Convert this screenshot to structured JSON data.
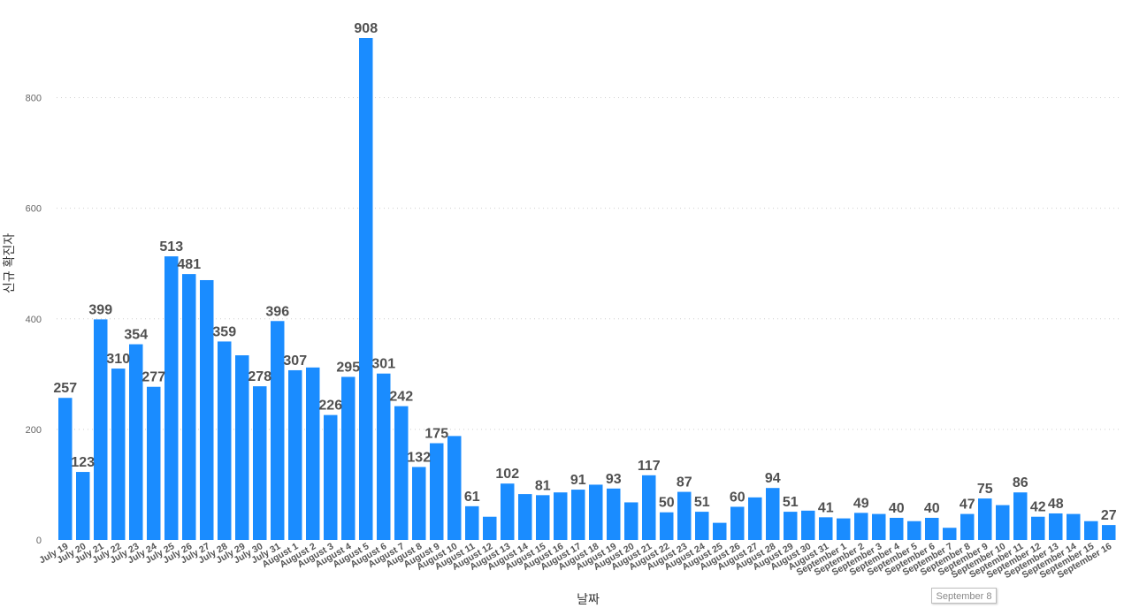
{
  "chart_data": {
    "type": "bar",
    "title": "",
    "xlabel": "날짜",
    "ylabel": "신규 확진자",
    "ylim": [
      0,
      908
    ],
    "yticks": [
      0,
      200,
      400,
      600,
      800
    ],
    "grid": true,
    "bar_color": "#1a8cff",
    "categories": [
      "July 19",
      "July 20",
      "July 21",
      "July 22",
      "July 23",
      "July 24",
      "July 25",
      "July 26",
      "July 27",
      "July 28",
      "July 29",
      "July 30",
      "July 31",
      "August 1",
      "August 2",
      "August 3",
      "August 4",
      "August 5",
      "August 6",
      "August 7",
      "August 8",
      "August 9",
      "August 10",
      "August 11",
      "August 12",
      "August 13",
      "August 14",
      "August 15",
      "August 16",
      "August 17",
      "August 18",
      "August 19",
      "August 20",
      "August 21",
      "August 22",
      "August 23",
      "August 24",
      "August 25",
      "August 26",
      "August 27",
      "August 28",
      "August 29",
      "August 30",
      "August 31",
      "September 1",
      "September 2",
      "September 3",
      "September 4",
      "September 5",
      "September 6",
      "September 7",
      "September 8",
      "September 9",
      "September 10",
      "September 11",
      "September 12",
      "September 13",
      "September 14",
      "September 15",
      "September 16"
    ],
    "values": [
      257,
      123,
      399,
      310,
      354,
      277,
      513,
      481,
      470,
      359,
      334,
      278,
      396,
      307,
      312,
      226,
      295,
      908,
      301,
      242,
      132,
      175,
      188,
      61,
      42,
      102,
      83,
      81,
      86,
      91,
      100,
      93,
      68,
      117,
      50,
      87,
      51,
      31,
      60,
      77,
      94,
      51,
      53,
      41,
      39,
      49,
      47,
      40,
      34,
      40,
      22,
      47,
      75,
      63,
      86,
      42,
      48,
      47,
      34,
      27
    ],
    "data_labels": [
      "257",
      "123",
      "399",
      "310",
      "354",
      "277",
      "513",
      "481",
      "",
      "359",
      "",
      "278",
      "396",
      "307",
      "",
      "226",
      "295",
      "908",
      "301",
      "242",
      "132",
      "175",
      "",
      "61",
      "",
      "102",
      "",
      "81",
      "",
      "91",
      "",
      "93",
      "",
      "117",
      "50",
      "87",
      "51",
      "",
      "60",
      "",
      "94",
      "51",
      "",
      "41",
      "",
      "49",
      "",
      "40",
      "",
      "40",
      "",
      "47",
      "75",
      "",
      "86",
      "42",
      "48",
      "",
      "",
      "27"
    ]
  },
  "tooltip": {
    "text": "September 8"
  }
}
